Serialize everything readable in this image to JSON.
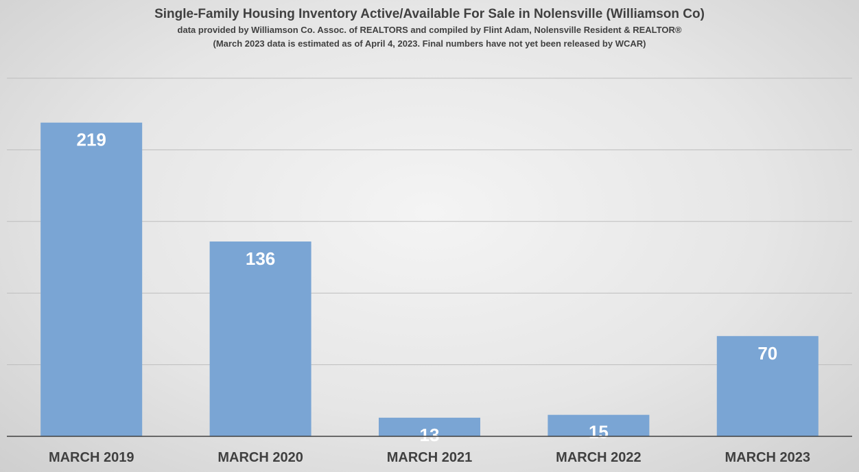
{
  "chart_data": {
    "type": "bar",
    "title": "Single-Family Housing Inventory Active/Available For Sale in Nolensville (Williamson Co)",
    "subtitle_1": "data provided by Williamson Co. Assoc. of REALTORS  and compiled by Flint Adam, Nolensville Resident & REALTOR®",
    "subtitle_2": "(March 2023 data is estimated as of April 4, 2023. Final numbers have not yet been released by WCAR)",
    "categories": [
      "MARCH 2019",
      "MARCH 2020",
      "MARCH 2021",
      "MARCH 2022",
      "MARCH 2023"
    ],
    "values": [
      219,
      136,
      13,
      15,
      70
    ],
    "data_labels": [
      "219",
      "136",
      "13",
      "15",
      "70"
    ],
    "ylim": [
      0,
      250
    ],
    "gridlines": [
      50,
      100,
      150,
      200,
      250
    ],
    "grid": true,
    "legend": "none",
    "bar_color": "#7aa5d4",
    "label_color": "#ffffff",
    "axis_label_color": "#404040"
  }
}
